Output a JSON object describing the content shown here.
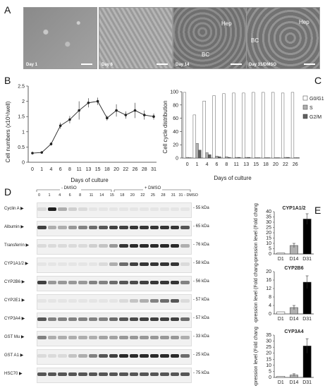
{
  "panels": {
    "a": "A",
    "b": "B",
    "c": "C",
    "d": "D",
    "e": "E"
  },
  "micrographs": [
    {
      "day": "Day 1",
      "tags": []
    },
    {
      "day": "Day 6",
      "tags": []
    },
    {
      "day": "Day 14",
      "tags": [
        "BC",
        "Hep"
      ]
    },
    {
      "day": "Day 31/DMSO",
      "tags": [
        "BC",
        "Hep"
      ]
    }
  ],
  "chart_data": [
    {
      "type": "line",
      "panel": "B",
      "ylabel": "Cell numbers (x10⁵/well)",
      "xlabel": "Days of culture",
      "x": [
        0,
        1,
        4,
        6,
        8,
        11,
        13,
        15,
        18,
        20,
        22,
        26,
        28,
        31
      ],
      "values": [
        0.3,
        0.32,
        0.6,
        1.2,
        1.4,
        1.7,
        1.95,
        2.0,
        1.45,
        1.7,
        1.55,
        1.7,
        1.55,
        1.5
      ],
      "errors": [
        0.02,
        0.02,
        0.05,
        0.1,
        0.12,
        0.3,
        0.15,
        0.12,
        0.08,
        0.2,
        0.12,
        0.25,
        0.15,
        0.1
      ],
      "xticks": [
        "0",
        "1",
        "4",
        "6",
        "8",
        "11",
        "13",
        "15",
        "18",
        "20",
        "22",
        "26",
        "28",
        "31"
      ],
      "yticks": [
        "0",
        "0.5",
        "1",
        "1.5",
        "2",
        "2.5"
      ],
      "ylim": [
        0,
        2.5
      ],
      "grid": false
    },
    {
      "type": "bar",
      "panel": "C",
      "ylabel": "Cell cycle distribution",
      "xlabel": "Days of culture",
      "categories": [
        "0",
        "1",
        "4",
        "6",
        "8",
        "11",
        "13",
        "15",
        "18",
        "20",
        "22",
        "26"
      ],
      "yticks": [
        "0",
        "20",
        "40",
        "60",
        "80",
        "100"
      ],
      "ylim": [
        0,
        100
      ],
      "legend_position": "top-right",
      "series": [
        {
          "name": "G0/G1",
          "color": "#ffffff",
          "values": [
            99,
            65,
            86,
            94,
            97,
            98,
            98,
            99,
            99,
            99,
            98,
            99
          ]
        },
        {
          "name": "S",
          "color": "#b0b0b0",
          "values": [
            1,
            22,
            8,
            3,
            2,
            1,
            1,
            0.5,
            0.5,
            0.5,
            1,
            0.5
          ]
        },
        {
          "name": "G2/M",
          "color": "#606060",
          "values": [
            0.5,
            12,
            5,
            2,
            1,
            1,
            1,
            0.5,
            0.5,
            0.5,
            1,
            0.5
          ]
        }
      ]
    },
    {
      "type": "bar",
      "panel": "E",
      "title": "CYP1A1/2",
      "ylabel": "Expression level (Fold change)",
      "categories": [
        "D1",
        "D14",
        "D31"
      ],
      "values": [
        1,
        8,
        33
      ],
      "errors": [
        0,
        2,
        5
      ],
      "colors": [
        "#ffffff",
        "#b0b0b0",
        "#000000"
      ],
      "yticks": [
        "0",
        "5",
        "10",
        "15",
        "20",
        "25",
        "30",
        "35",
        "40"
      ],
      "ylim": [
        0,
        40
      ]
    },
    {
      "type": "bar",
      "panel": "E",
      "title": "CYP2B6",
      "ylabel": "Expression level (Fold change)",
      "categories": [
        "D1",
        "D14",
        "D31"
      ],
      "values": [
        1,
        3,
        15
      ],
      "errors": [
        0,
        1,
        3
      ],
      "colors": [
        "#ffffff",
        "#b0b0b0",
        "#000000"
      ],
      "yticks": [
        "0",
        "4",
        "8",
        "12",
        "16",
        "20"
      ],
      "ylim": [
        0,
        20
      ]
    },
    {
      "type": "bar",
      "panel": "E",
      "title": "CYP3A4",
      "ylabel": "Expression level (Fold change)",
      "categories": [
        "D1",
        "D14",
        "D31"
      ],
      "values": [
        1,
        2,
        26
      ],
      "errors": [
        0,
        1,
        6
      ],
      "colors": [
        "#ffffff",
        "#b0b0b0",
        "#000000"
      ],
      "yticks": [
        "0",
        "5",
        "10",
        "15",
        "20",
        "25",
        "30",
        "35"
      ],
      "ylim": [
        0,
        35
      ]
    }
  ],
  "blot": {
    "group_minus": "- DMSO",
    "group_plus": "+ DMSO",
    "lanes_minus": [
      "0",
      "1",
      "4",
      "6",
      "8",
      "11",
      "14"
    ],
    "lanes_plus": [
      "15",
      "18",
      "20",
      "22",
      "25",
      "28",
      "31"
    ],
    "lane_last": "31 - DMSO",
    "rows": [
      {
        "label": "Cyclin A",
        "kda": "55 kDa",
        "intensity": [
          0.1,
          0.95,
          0.3,
          0.15,
          0.1,
          0.05,
          0.05,
          0.05,
          0.05,
          0.05,
          0.05,
          0.05,
          0.05,
          0.05,
          0.05
        ]
      },
      {
        "label": "Albumin",
        "kda": "65 kDa",
        "intensity": [
          0.8,
          0.3,
          0.3,
          0.4,
          0.5,
          0.6,
          0.7,
          0.8,
          0.8,
          0.85,
          0.85,
          0.85,
          0.85,
          0.85,
          0.7
        ]
      },
      {
        "label": "Transferrin",
        "kda": "76 kDa",
        "intensity": [
          0.1,
          0.1,
          0.1,
          0.1,
          0.1,
          0.15,
          0.2,
          0.4,
          0.85,
          0.9,
          0.9,
          0.9,
          0.9,
          0.9,
          0.3
        ]
      },
      {
        "label": "CYP1A1/2",
        "kda": "58 kDa",
        "intensity": [
          0.05,
          0.05,
          0.05,
          0.05,
          0.05,
          0.05,
          0.1,
          0.3,
          0.6,
          0.8,
          0.85,
          0.85,
          0.85,
          0.85,
          0.1
        ]
      },
      {
        "label": "CYP2B6",
        "kda": "56 kDa",
        "intensity": [
          0.8,
          0.4,
          0.4,
          0.4,
          0.4,
          0.5,
          0.5,
          0.6,
          0.7,
          0.75,
          0.8,
          0.85,
          0.85,
          0.85,
          0.5
        ]
      },
      {
        "label": "CYP2E1",
        "kda": "57 kDa",
        "intensity": [
          0.05,
          0.05,
          0.05,
          0.05,
          0.05,
          0.05,
          0.05,
          0.05,
          0.1,
          0.2,
          0.3,
          0.5,
          0.6,
          0.7,
          0.1
        ]
      },
      {
        "label": "CYP3A4",
        "kda": "57 kDa",
        "intensity": [
          0.7,
          0.5,
          0.5,
          0.5,
          0.5,
          0.5,
          0.5,
          0.6,
          0.7,
          0.75,
          0.8,
          0.8,
          0.8,
          0.8,
          0.6
        ]
      },
      {
        "label": "GST Mu",
        "kda": "33 kDa",
        "intensity": [
          0.5,
          0.3,
          0.3,
          0.3,
          0.3,
          0.3,
          0.35,
          0.35,
          0.4,
          0.4,
          0.4,
          0.4,
          0.4,
          0.4,
          0.3
        ]
      },
      {
        "label": "GST A1",
        "kda": "25 kDa",
        "intensity": [
          0.1,
          0.1,
          0.1,
          0.2,
          0.3,
          0.5,
          0.7,
          0.8,
          0.9,
          0.9,
          0.9,
          0.9,
          0.9,
          0.9,
          0.6
        ]
      },
      {
        "label": "HSC70",
        "kda": "75 kDa",
        "intensity": [
          0.7,
          0.7,
          0.7,
          0.7,
          0.7,
          0.7,
          0.7,
          0.7,
          0.7,
          0.7,
          0.7,
          0.7,
          0.7,
          0.7,
          0.7
        ]
      }
    ]
  }
}
